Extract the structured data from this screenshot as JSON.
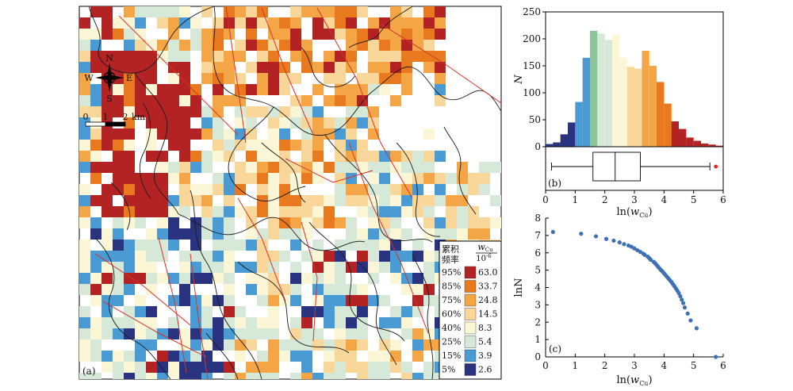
{
  "panel_a": {
    "label": "(a)",
    "compass": {
      "n": "N",
      "s": "S",
      "e": "E",
      "w": "W"
    },
    "scale_bar": {
      "ticks": [
        "0",
        "1",
        "2"
      ],
      "unit": "km"
    },
    "legend": {
      "header_left": "累积\n频率",
      "header_right_var": "w",
      "header_right_sub": "Cu",
      "header_right_den": "10",
      "header_right_exp": "-6",
      "rows": [
        {
          "pct": "95%",
          "val": "63.0",
          "color": "#b42323"
        },
        {
          "pct": "85%",
          "val": "33.7",
          "color": "#e8791e"
        },
        {
          "pct": "75%",
          "val": "24.8",
          "color": "#f4a646"
        },
        {
          "pct": "60%",
          "val": "14.5",
          "color": "#f9d79a"
        },
        {
          "pct": "40%",
          "val": "8.3",
          "color": "#fbf6d6"
        },
        {
          "pct": "25%",
          "val": "5.4",
          "color": "#d6e9d8"
        },
        {
          "pct": "15%",
          "val": "3.9",
          "color": "#4a9ad3"
        },
        {
          "pct": "5%",
          "val": "2.6",
          "color": "#2a3380"
        }
      ]
    }
  },
  "chart_data": [
    {
      "type": "bar",
      "panel": "(b) histogram",
      "ylabel": "N",
      "ylim": [
        0,
        250
      ],
      "yticks": [
        "0",
        "50",
        "100",
        "150",
        "200",
        "250"
      ],
      "xlim": [
        0,
        6
      ],
      "bin_width": 0.25,
      "bins_start": [
        0,
        0.25,
        0.5,
        0.75,
        1,
        1.25,
        1.5,
        1.75,
        2,
        2.25,
        2.5,
        2.75,
        3,
        3.25,
        3.5,
        3.75,
        4,
        4.25,
        4.5,
        4.75,
        5,
        5.25,
        5.5,
        5.75
      ],
      "values": [
        5,
        8,
        23,
        45,
        83,
        165,
        215,
        210,
        198,
        208,
        165,
        148,
        145,
        178,
        150,
        120,
        80,
        47,
        33,
        17,
        11,
        6,
        4,
        2
      ],
      "colors": [
        "#2a3380",
        "#2a3380",
        "#2a3380",
        "#2a3380",
        "#4a9ad3",
        "#4a9ad3",
        "#8dc49a",
        "#d6e9d8",
        "#d6e9d8",
        "#fbf6d6",
        "#fbf6d6",
        "#f9d79a",
        "#f9d79a",
        "#f4a646",
        "#f4a646",
        "#e8791e",
        "#e8791e",
        "#b42323",
        "#b42323",
        "#b42323",
        "#b42323",
        "#b42323",
        "#b42323",
        "#b42323"
      ]
    },
    {
      "type": "box",
      "panel": "(b)",
      "label": "(b)",
      "xlabel_var": "ln(",
      "xlabel_italic": "w",
      "xlabel_sub": "Cu",
      "xlabel_close": ")",
      "xticks": [
        "0",
        "1",
        "2",
        "3",
        "4",
        "5",
        "6"
      ],
      "xlim": [
        0,
        6
      ],
      "whisker_low": 0.2,
      "q1": 1.6,
      "median": 2.35,
      "q3": 3.2,
      "whisker_high": 5.55,
      "outliers": [
        5.75
      ]
    },
    {
      "type": "scatter",
      "panel": "(c)",
      "label": "(c)",
      "ylabel": "lnN",
      "xlabel_var": "ln(",
      "xlabel_italic": "w",
      "xlabel_sub": "Cu",
      "xlabel_close": ")",
      "xlim": [
        0,
        6
      ],
      "ylim": [
        0,
        8
      ],
      "xticks": [
        "0",
        "1",
        "2",
        "3",
        "4",
        "5",
        "6"
      ],
      "yticks": [
        "0",
        "1",
        "2",
        "3",
        "4",
        "5",
        "6",
        "7",
        "8"
      ],
      "x": [
        0.25,
        1.2,
        1.7,
        2.05,
        2.3,
        2.5,
        2.65,
        2.8,
        2.9,
        3.0,
        3.1,
        3.2,
        3.3,
        3.35,
        3.45,
        3.5,
        3.55,
        3.65,
        3.7,
        3.75,
        3.8,
        3.85,
        3.9,
        3.95,
        4.0,
        4.05,
        4.1,
        4.15,
        4.2,
        4.25,
        4.3,
        4.35,
        4.4,
        4.45,
        4.5,
        4.55,
        4.6,
        4.65,
        4.7,
        4.8,
        4.9,
        5.1,
        5.75
      ],
      "y": [
        7.2,
        7.1,
        6.95,
        6.8,
        6.7,
        6.6,
        6.5,
        6.42,
        6.35,
        6.25,
        6.15,
        6.05,
        5.95,
        5.88,
        5.78,
        5.7,
        5.6,
        5.48,
        5.4,
        5.3,
        5.2,
        5.1,
        5.0,
        4.92,
        4.82,
        4.72,
        4.62,
        4.52,
        4.42,
        4.32,
        4.2,
        4.08,
        3.95,
        3.82,
        3.68,
        3.5,
        3.3,
        3.1,
        2.85,
        2.5,
        2.1,
        1.65,
        0.0
      ]
    }
  ]
}
